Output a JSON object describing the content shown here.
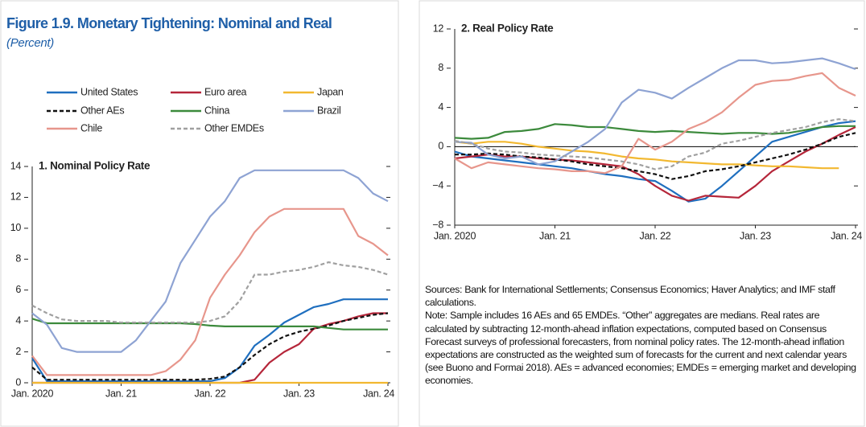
{
  "figure_title": "Figure 1.9. Monetary Tightening: Nominal and Real",
  "figure_subtitle": "(Percent)",
  "sources": "Sources: Bank for International Settlements; Consensus Economics; Haver Analytics; and IMF staff calculations.",
  "note": "Note: Sample includes 16 AEs and 65 EMDEs. “Other” aggregates are medians. Real rates are calculated by subtracting 12-month-ahead inflation expectations, computed based on Consensus Forecast surveys of professional forecasters, from nominal policy rates. The 12-month-ahead inflation expectations are constructed as the weighted sum of forecasts for the current and next calendar years (see Buono and Formai 2018). AEs = advanced economies; EMDEs = emerging market and developing economies.",
  "chart_data": [
    {
      "type": "line",
      "title": "1. Nominal Policy Rate",
      "x": [
        "2020-01",
        "2020-03",
        "2020-05",
        "2020-07",
        "2020-09",
        "2020-11",
        "2021-01",
        "2021-03",
        "2021-05",
        "2021-07",
        "2021-09",
        "2021-11",
        "2022-01",
        "2022-03",
        "2022-05",
        "2022-07",
        "2022-09",
        "2022-11",
        "2023-01",
        "2023-03",
        "2023-05",
        "2023-07",
        "2023-09",
        "2023-11",
        "2024-01"
      ],
      "xlim": [
        "2020-01",
        "2024-01"
      ],
      "xticks": [
        {
          "value": "2020-01",
          "label": "Jan. 2020"
        },
        {
          "value": "2021-01",
          "label": "Jan. 21"
        },
        {
          "value": "2022-01",
          "label": "Jan. 22"
        },
        {
          "value": "2023-01",
          "label": "Jan. 23"
        },
        {
          "value": "2024-01",
          "label": "Jan. 24"
        }
      ],
      "ylim": [
        0,
        14
      ],
      "yticks": [
        0,
        2,
        4,
        6,
        8,
        10,
        12,
        14
      ],
      "legend": "top",
      "series": [
        {
          "name": "United States",
          "color": "#1f6fbf",
          "dash": false,
          "values": [
            1.6,
            0.1,
            0.1,
            0.1,
            0.1,
            0.1,
            0.1,
            0.1,
            0.1,
            0.1,
            0.1,
            0.1,
            0.1,
            0.3,
            1.0,
            2.4,
            3.1,
            3.9,
            4.4,
            4.9,
            5.1,
            5.4,
            5.4,
            5.4,
            5.4
          ]
        },
        {
          "name": "Euro area",
          "color": "#b5263a",
          "dash": false,
          "values": [
            0,
            0,
            0,
            0,
            0,
            0,
            0,
            0,
            0,
            0,
            0,
            0,
            0,
            0,
            0,
            0.2,
            1.3,
            2.0,
            2.5,
            3.5,
            3.8,
            4.0,
            4.3,
            4.5,
            4.5
          ]
        },
        {
          "name": "Japan",
          "color": "#f2b830",
          "dash": false,
          "values": [
            0,
            0,
            0,
            0,
            0,
            0,
            0,
            0,
            0,
            0,
            0,
            0,
            0,
            0,
            0,
            0,
            0,
            0,
            0,
            0,
            0,
            0,
            0,
            0,
            0
          ]
        },
        {
          "name": "Other AEs",
          "color": "#111111",
          "dash": true,
          "values": [
            1.0,
            0.2,
            0.2,
            0.2,
            0.2,
            0.2,
            0.2,
            0.2,
            0.2,
            0.2,
            0.2,
            0.2,
            0.25,
            0.4,
            1.0,
            1.8,
            2.5,
            3.0,
            3.3,
            3.5,
            3.7,
            4.0,
            4.2,
            4.4,
            4.5
          ]
        },
        {
          "name": "China",
          "color": "#3c8a3c",
          "dash": false,
          "values": [
            4.15,
            3.85,
            3.85,
            3.85,
            3.85,
            3.85,
            3.85,
            3.85,
            3.85,
            3.85,
            3.85,
            3.8,
            3.7,
            3.65,
            3.65,
            3.65,
            3.65,
            3.65,
            3.65,
            3.65,
            3.55,
            3.45,
            3.45,
            3.45,
            3.45
          ]
        },
        {
          "name": "Brazil",
          "color": "#8ea3d3",
          "dash": false,
          "values": [
            4.5,
            3.75,
            2.25,
            2.0,
            2.0,
            2.0,
            2.0,
            2.75,
            4.0,
            5.25,
            7.75,
            9.25,
            10.75,
            11.75,
            13.25,
            13.75,
            13.75,
            13.75,
            13.75,
            13.75,
            13.75,
            13.75,
            13.25,
            12.25,
            11.75
          ]
        },
        {
          "name": "Chile",
          "color": "#e7968c",
          "dash": false,
          "values": [
            1.75,
            0.5,
            0.5,
            0.5,
            0.5,
            0.5,
            0.5,
            0.5,
            0.5,
            0.75,
            1.5,
            2.75,
            5.5,
            7.0,
            8.25,
            9.75,
            10.75,
            11.25,
            11.25,
            11.25,
            11.25,
            11.25,
            9.5,
            9.0,
            8.25
          ]
        },
        {
          "name": "Other EMDEs",
          "color": "#a0a0a0",
          "dash": true,
          "values": [
            5.0,
            4.5,
            4.1,
            4.0,
            4.0,
            4.0,
            3.9,
            3.9,
            3.9,
            3.9,
            3.9,
            3.9,
            4.0,
            4.3,
            5.3,
            7.0,
            7.0,
            7.2,
            7.3,
            7.5,
            7.8,
            7.6,
            7.5,
            7.3,
            7.0
          ]
        }
      ]
    },
    {
      "type": "line",
      "title": "2. Real Policy Rate",
      "x": [
        "2020-01",
        "2020-03",
        "2020-05",
        "2020-07",
        "2020-09",
        "2020-11",
        "2021-01",
        "2021-03",
        "2021-05",
        "2021-07",
        "2021-09",
        "2021-11",
        "2022-01",
        "2022-03",
        "2022-05",
        "2022-07",
        "2022-09",
        "2022-11",
        "2023-01",
        "2023-03",
        "2023-05",
        "2023-07",
        "2023-09",
        "2023-11",
        "2024-01"
      ],
      "xlim": [
        "2020-01",
        "2024-01"
      ],
      "xticks": [
        {
          "value": "2020-01",
          "label": "Jan. 2020"
        },
        {
          "value": "2021-01",
          "label": "Jan. 21"
        },
        {
          "value": "2022-01",
          "label": "Jan. 22"
        },
        {
          "value": "2023-01",
          "label": "Jan. 23"
        },
        {
          "value": "2024-01",
          "label": "Jan. 24"
        }
      ],
      "ylim": [
        -8,
        12
      ],
      "yticks": [
        {
          "value": -8,
          "label": "−8"
        },
        {
          "value": -4,
          "label": "−4"
        },
        0,
        4,
        8,
        12
      ],
      "zero_line": true,
      "series": [
        {
          "color": "#1f6fbf",
          "dash": false,
          "values": [
            -0.5,
            -1.0,
            -1.2,
            -1.4,
            -1.6,
            -1.8,
            -2.0,
            -2.2,
            -2.5,
            -2.8,
            -3.0,
            -3.3,
            -3.5,
            -4.5,
            -5.6,
            -5.3,
            -4.0,
            -2.5,
            -1.0,
            0.5,
            1.0,
            1.5,
            2.0,
            2.4,
            2.6
          ]
        },
        {
          "color": "#b5263a",
          "dash": false,
          "values": [
            -1.2,
            -1.0,
            -0.8,
            -1.0,
            -1.0,
            -1.2,
            -1.3,
            -1.4,
            -1.6,
            -1.8,
            -2.0,
            -2.8,
            -4.0,
            -5.0,
            -5.5,
            -5.0,
            -5.1,
            -5.2,
            -4.0,
            -2.5,
            -1.5,
            -0.5,
            0.3,
            1.2,
            2.0
          ]
        },
        {
          "color": "#f2b830",
          "dash": false,
          "values": [
            0.5,
            0.3,
            0.5,
            0.5,
            0.3,
            0.0,
            -0.2,
            -0.4,
            -0.5,
            -0.7,
            -1.0,
            -1.2,
            -1.3,
            -1.5,
            -1.6,
            -1.7,
            -1.8,
            -1.8,
            -1.9,
            -2.0,
            -2.0,
            -2.1,
            -2.2,
            -2.2,
            null
          ]
        },
        {
          "color": "#111111",
          "dash": true,
          "values": [
            -0.8,
            -0.8,
            -0.7,
            -0.8,
            -1.0,
            -1.1,
            -1.3,
            -1.5,
            -1.8,
            -2.0,
            -2.2,
            -2.5,
            -2.8,
            -3.3,
            -3.0,
            -2.5,
            -2.3,
            -2.0,
            -1.6,
            -1.2,
            -0.8,
            -0.3,
            0.3,
            1.0,
            1.4
          ]
        },
        {
          "color": "#3c8a3c",
          "dash": false,
          "values": [
            0.9,
            0.8,
            0.9,
            1.5,
            1.6,
            1.8,
            2.3,
            2.2,
            2.0,
            2.0,
            1.8,
            1.6,
            1.5,
            1.6,
            1.5,
            1.4,
            1.3,
            1.4,
            1.4,
            1.3,
            1.4,
            1.7,
            2.0,
            2.1,
            2.1
          ]
        },
        {
          "color": "#8ea3d3",
          "dash": false,
          "values": [
            0.5,
            0.4,
            -0.8,
            -1.2,
            -1.0,
            -1.8,
            -1.5,
            -0.5,
            0.5,
            1.8,
            4.5,
            5.8,
            5.5,
            4.9,
            6.0,
            7.0,
            8.0,
            8.8,
            8.8,
            8.5,
            8.6,
            8.8,
            9.0,
            8.5,
            7.9
          ]
        },
        {
          "color": "#e7968c",
          "dash": false,
          "values": [
            -1.2,
            -2.2,
            -1.6,
            -1.8,
            -2.0,
            -2.2,
            -2.3,
            -2.5,
            -2.5,
            -2.7,
            -2.0,
            0.8,
            -0.3,
            0.5,
            1.8,
            2.5,
            3.5,
            5.0,
            6.3,
            6.7,
            6.8,
            7.2,
            7.5,
            6.0,
            5.2
          ]
        },
        {
          "color": "#a0a0a0",
          "dash": true,
          "values": [
            0.6,
            0.3,
            -0.2,
            -0.5,
            -0.6,
            -0.8,
            -0.9,
            -1.0,
            -1.1,
            -1.3,
            -1.5,
            -1.8,
            -2.3,
            -2.0,
            -1.0,
            -0.6,
            0.3,
            0.6,
            1.0,
            1.4,
            1.7,
            2.0,
            2.5,
            2.8,
            2.6
          ]
        }
      ]
    }
  ]
}
